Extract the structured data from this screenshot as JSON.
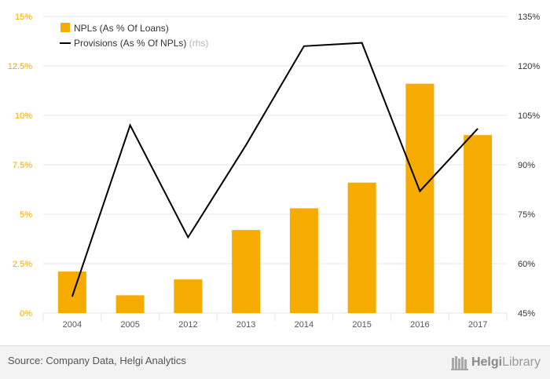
{
  "chart_data": {
    "type": "bar+line",
    "categories": [
      "2004",
      "2005",
      "2012",
      "2013",
      "2014",
      "2015",
      "2016",
      "2017"
    ],
    "series": [
      {
        "name": "NPLs (As % Of Loans)",
        "type": "bar",
        "axis": "left",
        "color": "#f5ab00",
        "values": [
          2.1,
          0.9,
          1.7,
          4.2,
          5.3,
          6.6,
          11.6,
          9.0
        ]
      },
      {
        "name": "Provisions (As % Of NPLs)",
        "axis_note": "(rhs)",
        "type": "line",
        "axis": "right",
        "color": "#000000",
        "values": [
          50,
          102,
          68,
          96,
          126,
          127,
          82,
          101
        ]
      }
    ],
    "left_axis": {
      "ticks": [
        "0%",
        "2.5%",
        "5%",
        "7.5%",
        "10%",
        "12.5%",
        "15%"
      ],
      "min": 0,
      "max": 15,
      "step": 2.5,
      "color": "#f5ab00"
    },
    "right_axis": {
      "ticks": [
        "45%",
        "60%",
        "75%",
        "90%",
        "105%",
        "120%",
        "135%"
      ],
      "min": 45,
      "max": 135,
      "step": 15
    },
    "grid": true,
    "legend_position": "top-left"
  },
  "footer": {
    "source": "Source: Company Data, Helgi Analytics",
    "logo_bold": "Helgi",
    "logo_light": "Library"
  }
}
